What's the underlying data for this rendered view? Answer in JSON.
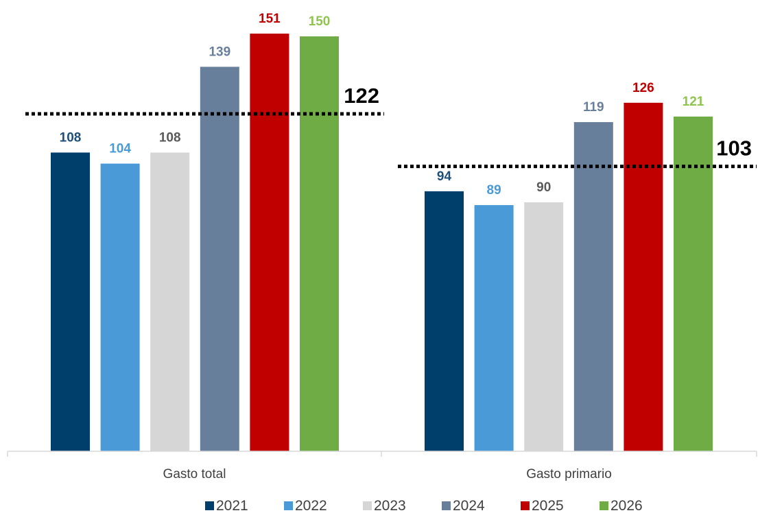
{
  "chart_data": {
    "type": "bar",
    "categories": [
      "Gasto total",
      "Gasto primario"
    ],
    "series": [
      {
        "name": "2021",
        "values": [
          108,
          94
        ],
        "color": "#003f6b",
        "label_color": "#1f4e79"
      },
      {
        "name": "2022",
        "values": [
          104,
          89
        ],
        "color": "#4a9ad8",
        "label_color": "#4a9ad8"
      },
      {
        "name": "2023",
        "values": [
          108,
          90
        ],
        "color": "#d6d6d6",
        "label_color": "#595959"
      },
      {
        "name": "2024",
        "values": [
          139,
          119
        ],
        "color": "#687f9c",
        "label_color": "#687f9c"
      },
      {
        "name": "2025",
        "values": [
          151,
          126
        ],
        "color": "#c00000",
        "label_color": "#c00000"
      },
      {
        "name": "2026",
        "values": [
          150,
          121
        ],
        "color": "#6fac46",
        "label_color": "#8fc44f"
      }
    ],
    "reference_lines": [
      {
        "category": "Gasto total",
        "value": 122,
        "label": "122"
      },
      {
        "category": "Gasto primario",
        "value": 103,
        "label": "103"
      }
    ],
    "ylim": [
      0,
      155
    ],
    "legend_position": "bottom",
    "grid": false
  }
}
